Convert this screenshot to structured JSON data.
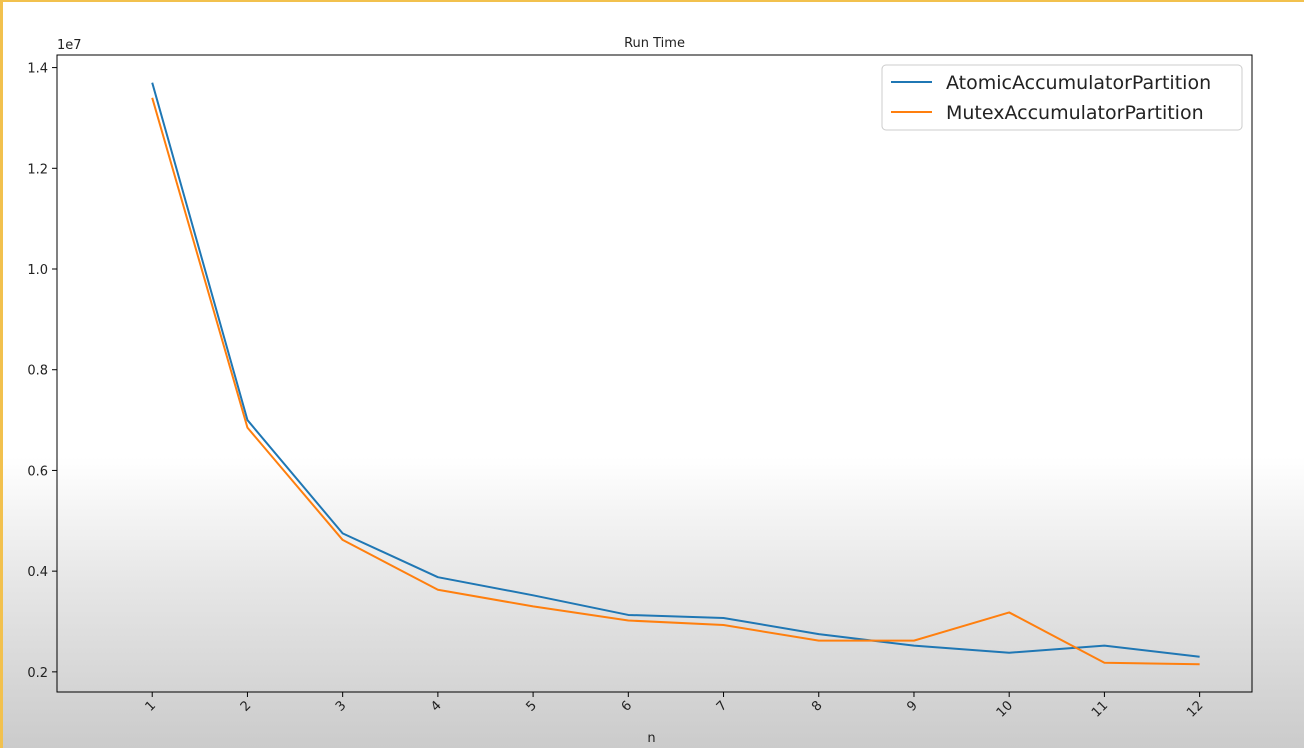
{
  "chart_data": {
    "type": "line",
    "title": "Run Time",
    "xlabel": "n",
    "ylabel": "",
    "y_offset_label": "1e7",
    "x": [
      1,
      2,
      3,
      4,
      5,
      6,
      7,
      8,
      9,
      10,
      11,
      12
    ],
    "x_tick_labels": [
      "1",
      "2",
      "3",
      "4",
      "5",
      "6",
      "7",
      "8",
      "9",
      "10",
      "11",
      "12"
    ],
    "y_ticks": [
      0.2,
      0.4,
      0.6,
      0.8,
      1.0,
      1.2,
      1.4
    ],
    "y_tick_labels": [
      "0.2",
      "0.4",
      "0.6",
      "0.8",
      "1.0",
      "1.2",
      "1.4"
    ],
    "xlim": [
      0.0,
      12.55
    ],
    "ylim": [
      0.16,
      1.425
    ],
    "grid": false,
    "legend_position": "top-right",
    "series": [
      {
        "name": "AtomicAccumulatorPartition",
        "color": "#1f77b4",
        "values": [
          1.37,
          0.7,
          0.475,
          0.388,
          0.352,
          0.313,
          0.307,
          0.275,
          0.252,
          0.238,
          0.252,
          0.23
        ]
      },
      {
        "name": "MutexAccumulatorPartition",
        "color": "#ff7f0e",
        "values": [
          1.34,
          0.685,
          0.462,
          0.363,
          0.33,
          0.302,
          0.293,
          0.262,
          0.262,
          0.318,
          0.218,
          0.215
        ]
      }
    ]
  }
}
